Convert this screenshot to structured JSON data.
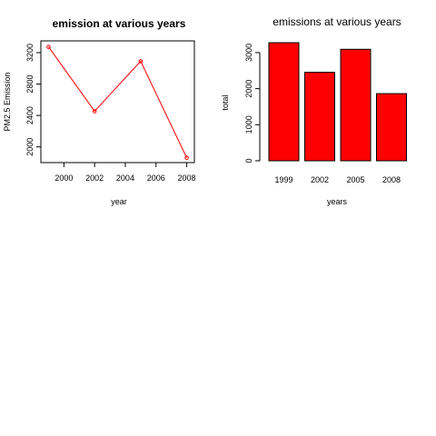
{
  "chart_data": [
    {
      "type": "line",
      "title": "emission at various years",
      "xlabel": "year",
      "ylabel": "PM2.5 Emission",
      "x": [
        1999,
        2002,
        2005,
        2008
      ],
      "series": [
        {
          "values": [
            3274,
            2454,
            3091,
            1862
          ]
        }
      ],
      "xlim": [
        1998.5,
        2008.5
      ],
      "ylim": [
        1800,
        3350
      ],
      "xticks": [
        "2000",
        "2002",
        "2004",
        "2006",
        "2008"
      ],
      "yticks": [
        "2000",
        "2400",
        "2800",
        "3200"
      ],
      "color": "#ff0000",
      "marker": "open-circle",
      "grid": false
    },
    {
      "type": "bar",
      "title": "emissions at various years",
      "xlabel": "years",
      "ylabel": "total",
      "categories": [
        "1999",
        "2002",
        "2005",
        "2008"
      ],
      "values": [
        3274,
        2454,
        3091,
        1862
      ],
      "ylim": [
        0,
        3350
      ],
      "yticks": [
        "0",
        "1000",
        "2000",
        "3000"
      ],
      "color": "#ff0000",
      "grid": false
    }
  ]
}
